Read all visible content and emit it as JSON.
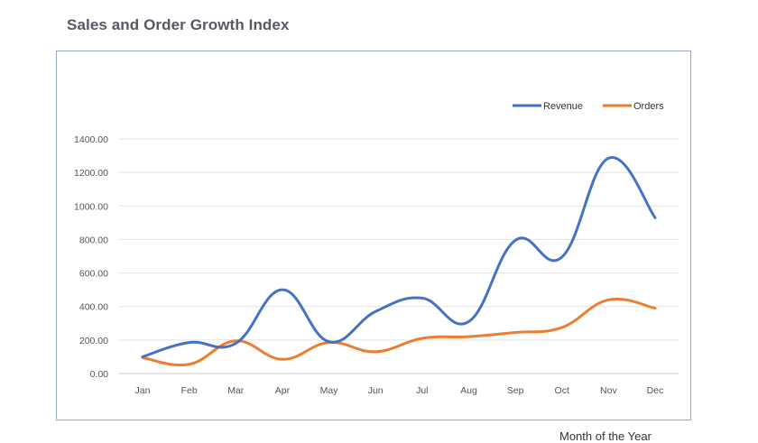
{
  "page": {
    "title": "Sales and Order Growth Index"
  },
  "chart_data": {
    "type": "line",
    "title": "Sales and Order Growth Index",
    "xlabel": "Month of the Year",
    "ylabel": "",
    "categories": [
      "Jan",
      "Feb",
      "Mar",
      "Apr",
      "May",
      "Jun",
      "Jul",
      "Aug",
      "Sep",
      "Oct",
      "Nov",
      "Dec"
    ],
    "ylim": [
      0,
      1400
    ],
    "yticks": [
      "0.00",
      "200.00",
      "400.00",
      "600.00",
      "800.00",
      "1000.00",
      "1200.00",
      "1400.00"
    ],
    "smooth": true,
    "grid": true,
    "legend_position": "top-right",
    "series": [
      {
        "name": "Revenue",
        "color": "#4472c4",
        "values": [
          100,
          185,
          180,
          500,
          190,
          370,
          450,
          310,
          795,
          695,
          1285,
          930
        ]
      },
      {
        "name": "Orders",
        "color": "#ed7d31",
        "values": [
          95,
          55,
          195,
          85,
          185,
          130,
          210,
          220,
          245,
          275,
          440,
          390
        ]
      }
    ]
  }
}
